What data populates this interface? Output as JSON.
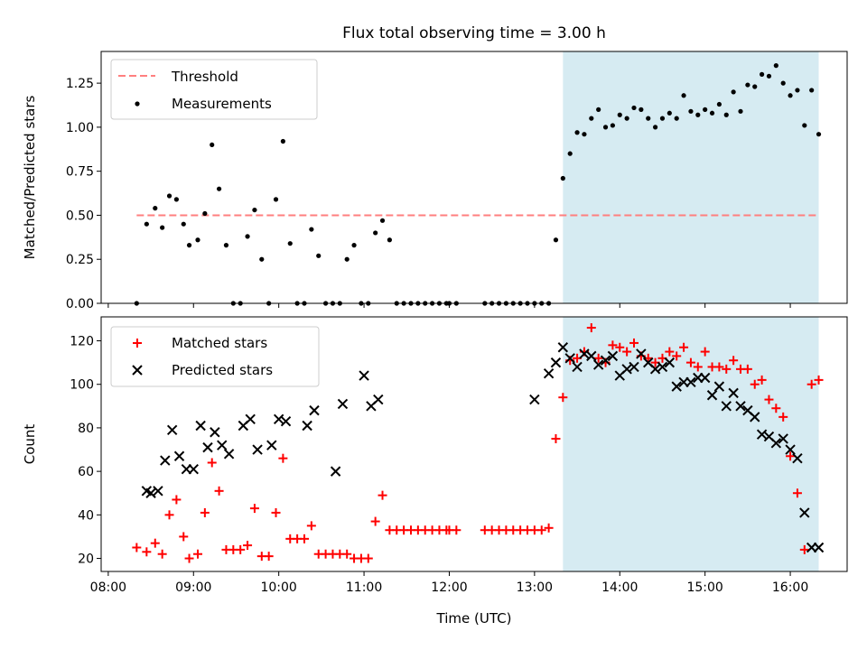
{
  "figure": {
    "title": "Flux total observing time = 3.00 h",
    "xlabel": "Time (UTC)",
    "x_ticks": [
      "08:00",
      "09:00",
      "10:00",
      "11:00",
      "12:00",
      "13:00",
      "14:00",
      "15:00",
      "16:00"
    ],
    "shaded_region": {
      "start": "13:20",
      "end": "16:20",
      "color": "#add8e6"
    }
  },
  "chart_data": [
    {
      "type": "scatter",
      "name": "top",
      "ylabel": "Matched/Predicted stars",
      "ylim": [
        0,
        1.43
      ],
      "y_ticks": [
        "0.00",
        "0.25",
        "0.50",
        "0.75",
        "1.00",
        "1.25"
      ],
      "legend_position": "upper-left",
      "threshold": {
        "label": "Threshold",
        "value": 0.5,
        "x_start": "08:20",
        "x_end": "16:20",
        "color": "#ff7f7f"
      },
      "series": [
        {
          "name": "Measurements",
          "color": "#000000",
          "x": [
            "08:20",
            "08:27",
            "08:33",
            "08:38",
            "08:43",
            "08:48",
            "08:53",
            "08:57",
            "09:03",
            "09:08",
            "09:13",
            "09:18",
            "09:23",
            "09:28",
            "09:33",
            "09:38",
            "09:43",
            "09:48",
            "09:53",
            "09:58",
            "10:03",
            "10:08",
            "10:13",
            "10:18",
            "10:23",
            "10:28",
            "10:33",
            "10:38",
            "10:43",
            "10:48",
            "10:53",
            "10:58",
            "11:03",
            "11:08",
            "11:13",
            "11:18",
            "11:23",
            "11:28",
            "11:33",
            "11:38",
            "11:43",
            "11:48",
            "11:53",
            "11:58",
            "12:00",
            "12:05",
            "12:25",
            "12:30",
            "12:35",
            "12:40",
            "12:45",
            "12:50",
            "12:55",
            "13:00",
            "13:05",
            "13:10",
            "13:15",
            "13:20",
            "13:25",
            "13:30",
            "13:35",
            "13:40",
            "13:45",
            "13:50",
            "13:55",
            "14:00",
            "14:05",
            "14:10",
            "14:15",
            "14:20",
            "14:25",
            "14:30",
            "14:35",
            "14:40",
            "14:45",
            "14:50",
            "14:55",
            "15:00",
            "15:05",
            "15:10",
            "15:15",
            "15:20",
            "15:25",
            "15:30",
            "15:35",
            "15:40",
            "15:45",
            "15:50",
            "15:55",
            "16:00",
            "16:05",
            "16:10",
            "16:15",
            "16:20"
          ],
          "y": [
            0.0,
            0.45,
            0.54,
            0.43,
            0.61,
            0.59,
            0.45,
            0.33,
            0.36,
            0.51,
            0.9,
            0.65,
            0.33,
            0.0,
            0.0,
            0.38,
            0.53,
            0.25,
            0.0,
            0.59,
            0.92,
            0.34,
            0.0,
            0.0,
            0.42,
            0.27,
            0.0,
            0.0,
            0.0,
            0.25,
            0.33,
            0.0,
            0.0,
            0.4,
            0.47,
            0.36,
            0.0,
            0.0,
            0.0,
            0.0,
            0.0,
            0.0,
            0.0,
            0.0,
            0.0,
            0.0,
            0.0,
            0.0,
            0.0,
            0.0,
            0.0,
            0.0,
            0.0,
            0.0,
            0.0,
            0.0,
            0.36,
            0.71,
            0.85,
            0.97,
            0.96,
            1.05,
            1.1,
            1.0,
            1.01,
            1.07,
            1.05,
            1.11,
            1.1,
            1.05,
            1.0,
            1.05,
            1.08,
            1.05,
            1.18,
            1.09,
            1.07,
            1.1,
            1.08,
            1.13,
            1.07,
            1.2,
            1.09,
            1.24,
            1.23,
            1.3,
            1.29,
            1.35,
            1.25,
            1.18,
            1.21,
            1.01,
            1.21,
            0.96
          ]
        }
      ]
    },
    {
      "type": "scatter",
      "name": "bottom",
      "ylabel": "Count",
      "ylim": [
        14,
        131
      ],
      "y_ticks": [
        "20",
        "40",
        "60",
        "80",
        "100",
        "120"
      ],
      "legend_position": "upper-left",
      "series": [
        {
          "name": "Matched stars",
          "marker": "+",
          "color": "#ff0000",
          "x": [
            "08:20",
            "08:27",
            "08:33",
            "08:38",
            "08:43",
            "08:48",
            "08:53",
            "08:57",
            "09:03",
            "09:08",
            "09:13",
            "09:18",
            "09:23",
            "09:28",
            "09:33",
            "09:38",
            "09:43",
            "09:48",
            "09:53",
            "09:58",
            "10:03",
            "10:08",
            "10:13",
            "10:18",
            "10:23",
            "10:28",
            "10:33",
            "10:38",
            "10:43",
            "10:48",
            "10:53",
            "10:58",
            "11:03",
            "11:08",
            "11:13",
            "11:18",
            "11:23",
            "11:28",
            "11:33",
            "11:38",
            "11:43",
            "11:48",
            "11:53",
            "11:58",
            "12:00",
            "12:05",
            "12:25",
            "12:30",
            "12:35",
            "12:40",
            "12:45",
            "12:50",
            "12:55",
            "13:00",
            "13:05",
            "13:10",
            "13:15",
            "13:20",
            "13:25",
            "13:30",
            "13:35",
            "13:40",
            "13:45",
            "13:50",
            "13:55",
            "14:00",
            "14:05",
            "14:10",
            "14:15",
            "14:20",
            "14:25",
            "14:30",
            "14:35",
            "14:40",
            "14:45",
            "14:50",
            "14:55",
            "15:00",
            "15:05",
            "15:10",
            "15:15",
            "15:20",
            "15:25",
            "15:30",
            "15:35",
            "15:40",
            "15:45",
            "15:50",
            "15:55",
            "16:00",
            "16:05",
            "16:10",
            "16:15",
            "16:20"
          ],
          "y": [
            25,
            23,
            27,
            22,
            40,
            47,
            30,
            20,
            22,
            41,
            64,
            51,
            24,
            24,
            24,
            26,
            43,
            21,
            21,
            41,
            66,
            29,
            29,
            29,
            35,
            22,
            22,
            22,
            22,
            22,
            20,
            20,
            20,
            37,
            49,
            33,
            33,
            33,
            33,
            33,
            33,
            33,
            33,
            33,
            33,
            33,
            33,
            33,
            33,
            33,
            33,
            33,
            33,
            33,
            33,
            34,
            75,
            94,
            111,
            112,
            115,
            126,
            112,
            110,
            118,
            117,
            115,
            119,
            113,
            112,
            110,
            112,
            115,
            113,
            117,
            110,
            108,
            115,
            108,
            108,
            107,
            111,
            107,
            107,
            100,
            102,
            93,
            89,
            85,
            67,
            50,
            24,
            100,
            102
          ],
          "note_skip": 0
        },
        {
          "name": "Predicted stars",
          "marker": "x",
          "color": "#000000",
          "x": [
            "08:27",
            "08:30",
            "08:35",
            "08:40",
            "08:45",
            "08:50",
            "08:55",
            "09:00",
            "09:05",
            "09:10",
            "09:15",
            "09:20",
            "09:25",
            "09:35",
            "09:40",
            "09:45",
            "09:55",
            "10:00",
            "10:05",
            "10:20",
            "10:25",
            "10:40",
            "10:45",
            "11:00",
            "11:05",
            "11:10",
            "13:00",
            "13:10",
            "13:15",
            "13:20",
            "13:25",
            "13:30",
            "13:35",
            "13:40",
            "13:45",
            "13:50",
            "13:55",
            "14:00",
            "14:05",
            "14:10",
            "14:15",
            "14:20",
            "14:25",
            "14:30",
            "14:35",
            "14:40",
            "14:45",
            "14:50",
            "14:55",
            "15:00",
            "15:05",
            "15:10",
            "15:15",
            "15:20",
            "15:25",
            "15:30",
            "15:35",
            "15:40",
            "15:45",
            "15:50",
            "15:55",
            "16:00",
            "16:05",
            "16:10",
            "16:15",
            "16:20"
          ],
          "y": [
            51,
            50,
            51,
            65,
            79,
            67,
            61,
            61,
            81,
            71,
            78,
            72,
            68,
            81,
            84,
            70,
            72,
            84,
            83,
            81,
            88,
            60,
            91,
            104,
            90,
            93,
            93,
            105,
            110,
            117,
            112,
            108,
            114,
            113,
            109,
            111,
            113,
            104,
            107,
            108,
            114,
            110,
            107,
            108,
            110,
            99,
            101,
            101,
            103,
            103,
            95,
            99,
            90,
            96,
            90,
            88,
            85,
            77,
            76,
            73,
            75,
            70,
            66,
            41,
            25,
            25
          ]
        }
      ]
    }
  ]
}
